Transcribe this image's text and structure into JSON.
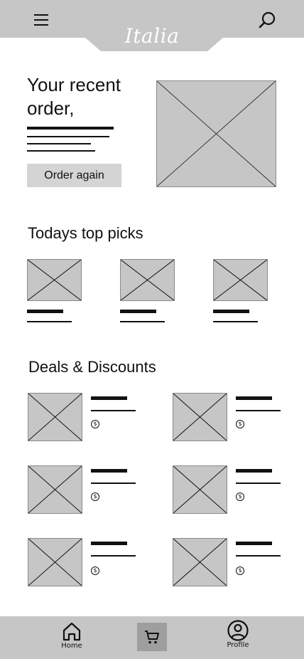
{
  "header": {
    "logo": "Italia",
    "menu_icon": "hamburger-menu-icon",
    "search_icon": "search-icon"
  },
  "recent_order": {
    "heading": "Your recent order,",
    "button_label": "Order again"
  },
  "top_picks": {
    "title": "Todays top picks",
    "item_count": 3
  },
  "deals": {
    "title": "Deals & Discounts",
    "price_icon": "dollar-coin-icon",
    "price_symbol": "$",
    "item_count": 6
  },
  "bottom_nav": {
    "home_label": "Home",
    "cart_icon": "cart-icon",
    "profile_label": "Profile"
  },
  "colors": {
    "placeholder_gray": "#c6c6c6",
    "bar_gray": "#c6c6c6",
    "button_gray": "#d4d4d4",
    "active_nav": "#9e9e9e"
  }
}
